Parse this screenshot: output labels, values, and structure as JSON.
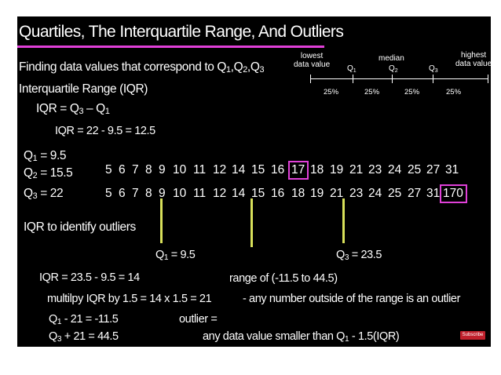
{
  "title": "Quartiles, The Interquartile Range, And Outliers",
  "finding": {
    "text": "Finding data values that correspond to Q",
    "s1": "1",
    "s2": "2",
    "s3": "3",
    "q": "Q"
  },
  "iqr_heading": "Interquartile Range (IQR)",
  "formula": {
    "lhs": "IQR = Q",
    "s3": "3",
    "minus": " – Q",
    "s1": "1"
  },
  "iqr_calc": "IQR = 22 - 9.5 = 12.5",
  "q_labels": {
    "q1": {
      "q": "Q",
      "sub": "1",
      "rest": " = 9.5"
    },
    "q2": {
      "q": "Q",
      "sub": "2",
      "rest": " = 15.5"
    },
    "q3": {
      "q": "Q",
      "sub": "3",
      "rest": " = 22"
    }
  },
  "row1": [
    "5",
    "6",
    "7",
    "8",
    "9",
    "10",
    "11",
    "12",
    "14",
    "15",
    "16",
    "17",
    "18",
    "19",
    "21",
    "23",
    "24",
    "25",
    "27",
    "31"
  ],
  "row2": [
    "5",
    "6",
    "7",
    "8",
    "9",
    "10",
    "11",
    "12",
    "14",
    "15",
    "16",
    "18",
    "19",
    "21",
    "23",
    "24",
    "25",
    "27",
    "31",
    "170"
  ],
  "legend": {
    "lowest": "lowest\ndata value",
    "q1": "Q",
    "q1s": "1",
    "median": "median",
    "q2": "Q",
    "q2s": "2",
    "q3": "Q",
    "q3s": "3",
    "highest": "highest\ndata value",
    "pcts": [
      "25%",
      "25%",
      "25%",
      "25%"
    ]
  },
  "identify": "IQR to identify outliers",
  "q1_mark": {
    "q": "Q",
    "sub": "1",
    "rest": " = 9.5"
  },
  "q3_mark": {
    "q": "Q",
    "sub": "3",
    "rest": " = 23.5"
  },
  "iqr2": "IQR = 23.5 - 9.5 = 14",
  "mult": "multilpy IQR by 1.5 = 14 x 1.5 = 21",
  "low_bound": {
    "q": "Q",
    "sub": "1",
    "rest": " - 21 = -11.5"
  },
  "high_bound": {
    "q": "Q",
    "sub": "3",
    "rest": " + 21 = 44.5"
  },
  "range": "range of (-11.5 to 44.5)",
  "range_note": "- any number outside of the range is an outlier",
  "outlier": "outlier =",
  "outlier_def": {
    "text": "any data value smaller than Q",
    "sub": "1",
    "rest": " - 1.5(IQR)"
  },
  "subscribe": "Subscribe",
  "colors": {
    "accent": "#e040d8",
    "marker": "#d8e05a",
    "background": "#000000"
  }
}
